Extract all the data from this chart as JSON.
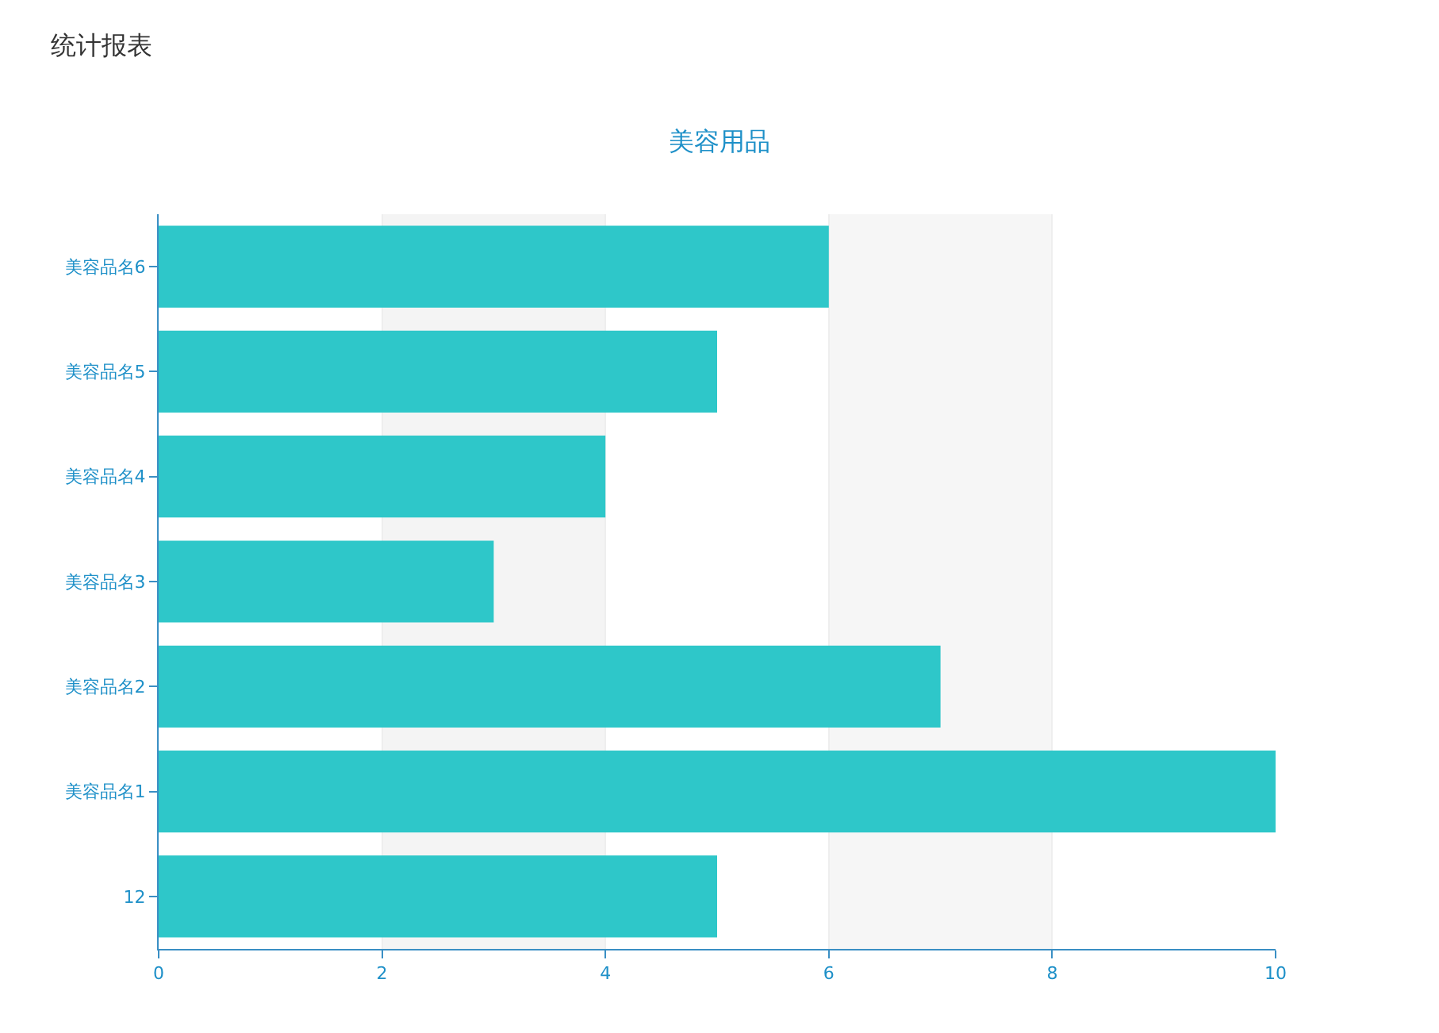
{
  "chart_data": {
    "type": "bar",
    "orientation": "horizontal",
    "title": "美容用品",
    "annotations": [
      "统计报表"
    ],
    "categories": [
      "美容品名6",
      "美容品名5",
      "美容品名4",
      "美容品名3",
      "美容品名2",
      "美容品名1",
      "12"
    ],
    "values": [
      6,
      5,
      4,
      3,
      7,
      10,
      5
    ],
    "color": "#2ec7c9",
    "xlim": [
      0,
      10
    ],
    "xticks": [
      0,
      2,
      4,
      6,
      8,
      10
    ],
    "grid": "x",
    "bands": [
      {
        "axis": "x",
        "from": 2,
        "to": 4,
        "color": "#f4f4f4"
      },
      {
        "axis": "x",
        "from": 6,
        "to": 8,
        "color": "#f6f6f6"
      }
    ]
  }
}
